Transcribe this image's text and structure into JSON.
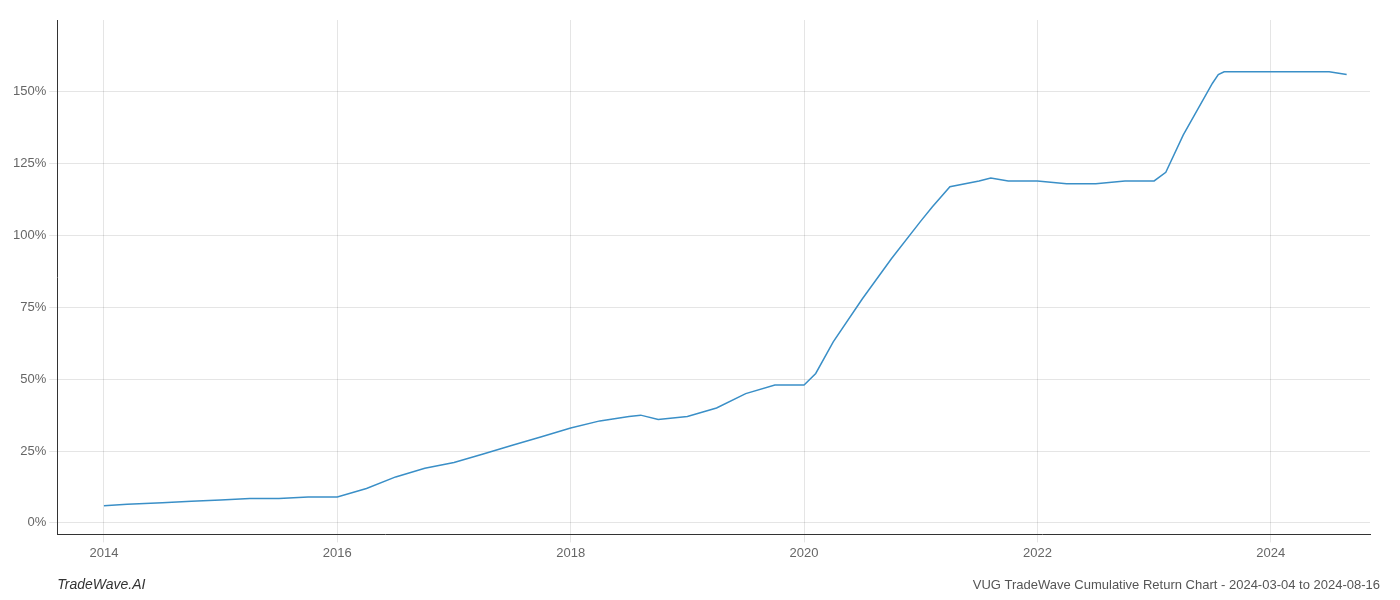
{
  "chart_data": {
    "type": "line",
    "title": "VUG TradeWave Cumulative Return Chart - 2024-03-04 to 2024-08-16",
    "annotations": [
      "TradeWave.AI"
    ],
    "x": [
      2014.0,
      2014.2,
      2014.5,
      2014.75,
      2015.0,
      2015.25,
      2015.5,
      2015.75,
      2016.0,
      2016.25,
      2016.5,
      2016.75,
      2017.0,
      2017.25,
      2017.5,
      2017.75,
      2018.0,
      2018.25,
      2018.5,
      2018.6,
      2018.75,
      2019.0,
      2019.25,
      2019.5,
      2019.75,
      2020.0,
      2020.1,
      2020.25,
      2020.5,
      2020.75,
      2021.0,
      2021.1,
      2021.25,
      2021.5,
      2021.6,
      2021.75,
      2022.0,
      2022.25,
      2022.5,
      2022.75,
      2023.0,
      2023.1,
      2023.25,
      2023.5,
      2023.55,
      2023.6,
      2023.75,
      2024.0,
      2024.1,
      2024.5,
      2024.65
    ],
    "values": [
      0.06,
      0.065,
      0.07,
      0.075,
      0.08,
      0.085,
      0.085,
      0.09,
      0.09,
      0.12,
      0.16,
      0.19,
      0.21,
      0.24,
      0.27,
      0.3,
      0.33,
      0.355,
      0.37,
      0.375,
      0.36,
      0.37,
      0.4,
      0.45,
      0.48,
      0.48,
      0.52,
      0.63,
      0.78,
      0.92,
      1.05,
      1.1,
      1.17,
      1.19,
      1.2,
      1.19,
      1.19,
      1.18,
      1.18,
      1.19,
      1.19,
      1.22,
      1.35,
      1.53,
      1.56,
      1.57,
      1.57,
      1.57,
      1.57,
      1.57,
      1.56
    ],
    "color": "#3a8fc7",
    "xlim": [
      2013.6,
      2024.85
    ],
    "ylim": [
      -0.04,
      1.75
    ],
    "xticks": [
      2014,
      2016,
      2018,
      2020,
      2022,
      2024
    ],
    "yticks": [
      {
        "value": 0,
        "label": "0%"
      },
      {
        "value": 0.25,
        "label": "25%"
      },
      {
        "value": 0.5,
        "label": "50%"
      },
      {
        "value": 0.75,
        "label": "75%"
      },
      {
        "value": 1.0,
        "label": "100%"
      },
      {
        "value": 1.25,
        "label": "125%"
      },
      {
        "value": 1.5,
        "label": "150%"
      }
    ],
    "grid": true
  }
}
